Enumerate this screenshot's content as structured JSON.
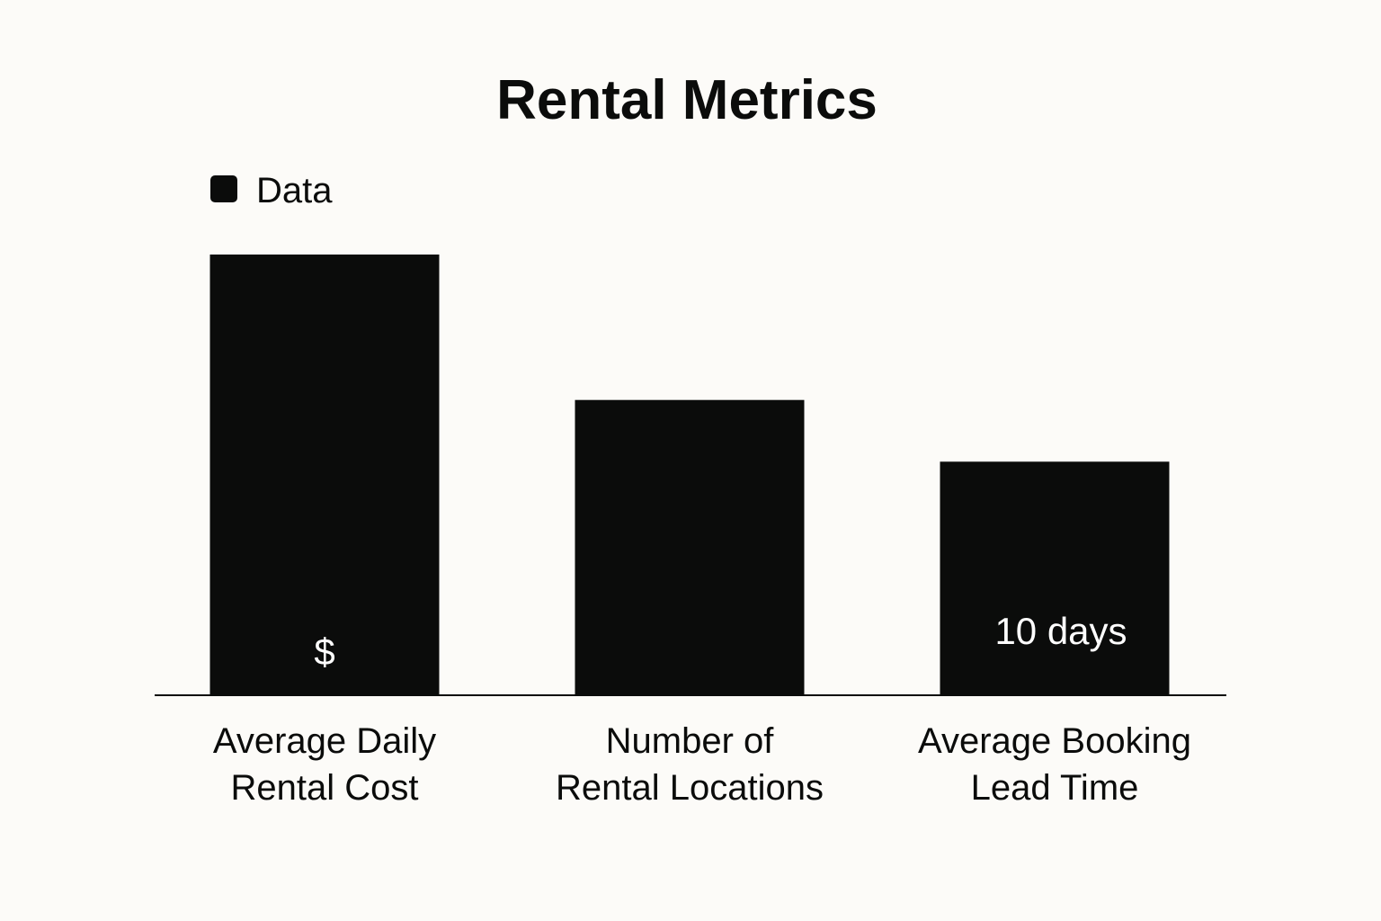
{
  "chart_data": {
    "type": "bar",
    "title": "Rental Metrics",
    "xlabel": "",
    "ylabel": "",
    "legend": {
      "entries": [
        "Data"
      ],
      "placement": "top-left"
    },
    "grid": false,
    "categories": [
      [
        "Average Daily",
        "Rental Cost"
      ],
      [
        "Number of",
        "Rental Locations"
      ],
      [
        "Average Booking",
        "Lead Time"
      ]
    ],
    "series": [
      {
        "name": "Data",
        "values": [
          100,
          67,
          53
        ],
        "data_labels": [
          "$",
          "",
          "10 days"
        ],
        "color": "#0b0c0b"
      }
    ],
    "ylim": [
      0,
      100
    ]
  },
  "colors": {
    "background": "#fcfbf8",
    "bar": "#0b0c0b",
    "axis": "#0b0c0b",
    "label_on_bar": "#ffffff"
  }
}
